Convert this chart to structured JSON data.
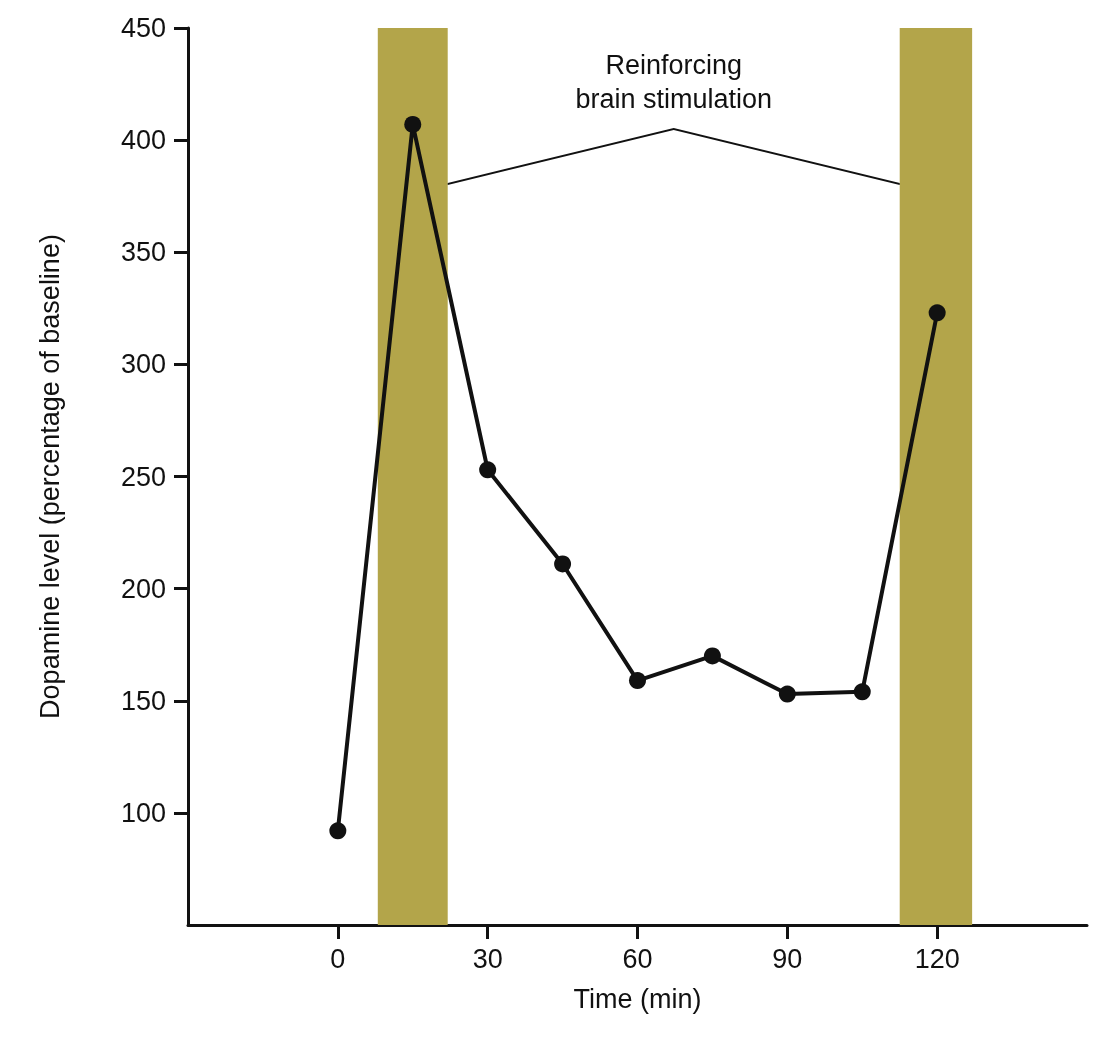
{
  "chart_data": {
    "type": "line",
    "xlabel": "Time (min)",
    "ylabel": "Dopamine level (percentage of baseline)",
    "x": [
      0,
      15,
      30,
      45,
      60,
      75,
      90,
      105,
      120
    ],
    "series": [
      {
        "color": "#111111",
        "values": [
          92,
          407,
          253,
          211,
          159,
          170,
          153,
          154,
          323
        ]
      }
    ],
    "xlim": [
      -30,
      150
    ],
    "xticks": [
      0,
      30,
      60,
      90,
      120
    ],
    "ylim": [
      50,
      450
    ],
    "yticks": [
      100,
      150,
      200,
      250,
      300,
      350,
      400,
      450
    ],
    "bands": [
      {
        "axis": "x",
        "from": 8,
        "to": 22,
        "color": "#b3a54a"
      },
      {
        "axis": "x",
        "from": 112.5,
        "to": 127,
        "color": "#b3a54a"
      }
    ],
    "annotations": [
      "Reinforcing\nbrain stimulation"
    ],
    "grid": false,
    "marker": "circle",
    "line_style": "solid"
  }
}
